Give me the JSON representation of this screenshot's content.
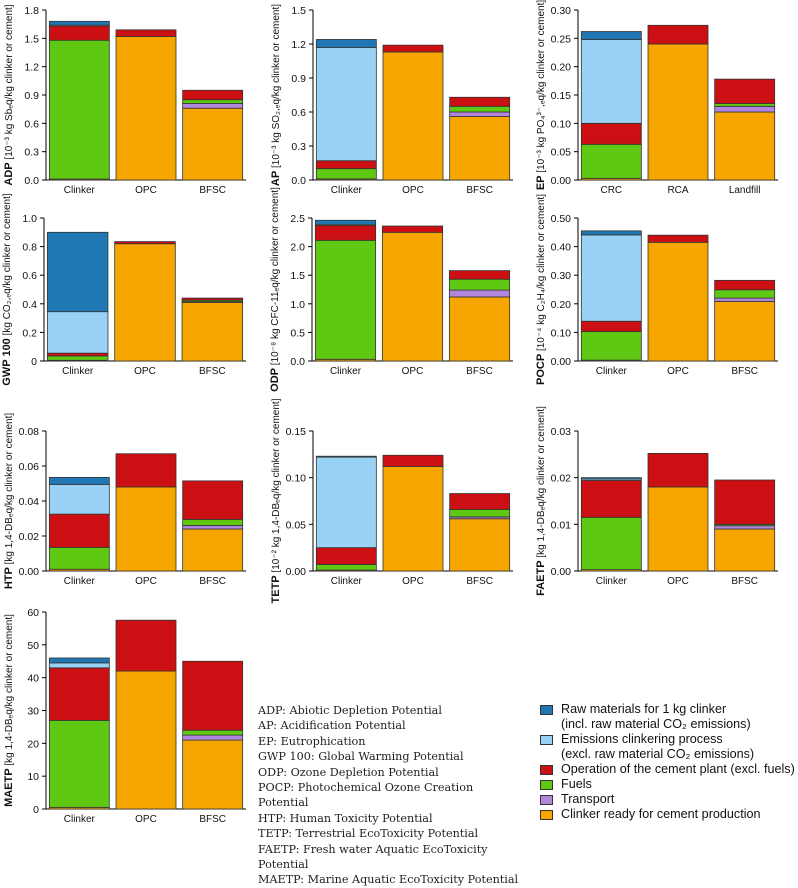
{
  "colors": {
    "raw": "#1f78b4",
    "emis": "#99d2f5",
    "oper": "#cc0f12",
    "fuels": "#5ec813",
    "transport": "#b087dc",
    "clinker_ready": "#f7a600"
  },
  "legend": [
    {
      "key": "raw",
      "line1": "Raw materials for 1 kg clinker",
      "line2": "(incl. raw material CO₂ emissions)"
    },
    {
      "key": "emis",
      "line1": "Emissions clinkering process",
      "line2": "(excl. raw material CO₂ emissions)"
    },
    {
      "key": "oper",
      "line1": "Operation of the cement plant (excl. fuels)",
      "line2": ""
    },
    {
      "key": "fuels",
      "line1": "Fuels",
      "line2": ""
    },
    {
      "key": "transport",
      "line1": "Transport",
      "line2": ""
    },
    {
      "key": "clinker_ready",
      "line1": "Clinker ready for cement production",
      "line2": ""
    }
  ],
  "abbreviations": [
    "ADP: Abiotic Depletion Potential",
    "AP: Acidification Potential",
    "EP: Eutrophication",
    "GWP 100: Global Warming Potential",
    "ODP: Ozone Depletion Potential",
    "POCP: Photochemical Ozone Creation",
    "Potential",
    "HTP: Human Toxicity Potential",
    "TETP: Terrestrial EcoToxicity Potential",
    "FAETP: Fresh water Aquatic EcoToxicity",
    "Potential",
    "MAETP: Marine Aquatic EcoToxicity Potential"
  ],
  "chart_data": [
    {
      "type": "bar",
      "stacked": true,
      "name": "ADP",
      "ylabel_bold": "ADP",
      "ylabel_rest": " [10⁻³ kg Sbₑq/kg clinker or cement]",
      "ylim": [
        0,
        1.8
      ],
      "yticks": [
        "0.0",
        "0.3",
        "0.6",
        "0.9",
        "1.2",
        "1.5",
        "1.8"
      ],
      "tick_values": [
        0,
        0.3,
        0.6,
        0.9,
        1.2,
        1.5,
        1.8
      ],
      "categories": [
        "Clinker",
        "OPC",
        "BFSC"
      ],
      "series": [
        {
          "key": "clinker_ready",
          "values": [
            0.01,
            1.52,
            0.76
          ]
        },
        {
          "key": "transport",
          "values": [
            0,
            0,
            0.05
          ]
        },
        {
          "key": "fuels",
          "values": [
            1.47,
            0,
            0.04
          ]
        },
        {
          "key": "oper",
          "values": [
            0.15,
            0.07,
            0.1
          ]
        },
        {
          "key": "emis",
          "values": [
            0.01,
            0,
            0
          ]
        },
        {
          "key": "raw",
          "values": [
            0.04,
            0,
            0
          ]
        }
      ]
    },
    {
      "type": "bar",
      "stacked": true,
      "name": "AP",
      "ylabel_bold": "AP",
      "ylabel_rest": " [10⁻³ kg SO₂,ₑq/kg clinker or cement]",
      "ylim": [
        0,
        1.5
      ],
      "yticks": [
        "0.0",
        "0.3",
        "0.6",
        "0.9",
        "1.2",
        "1.5"
      ],
      "tick_values": [
        0,
        0.3,
        0.6,
        0.9,
        1.2,
        1.5
      ],
      "categories": [
        "Clinker",
        "OPC",
        "BFSC"
      ],
      "series": [
        {
          "key": "clinker_ready",
          "values": [
            0.01,
            1.13,
            0.56
          ]
        },
        {
          "key": "transport",
          "values": [
            0,
            0,
            0.04
          ]
        },
        {
          "key": "fuels",
          "values": [
            0.09,
            0,
            0.05
          ]
        },
        {
          "key": "oper",
          "values": [
            0.07,
            0.06,
            0.08
          ]
        },
        {
          "key": "emis",
          "values": [
            1.0,
            0,
            0
          ]
        },
        {
          "key": "raw",
          "values": [
            0.07,
            0,
            0
          ]
        }
      ]
    },
    {
      "type": "bar",
      "stacked": true,
      "name": "EP",
      "ylabel_bold": "EP",
      "ylabel_rest": " [10⁻³ kg PO₄³⁻,ₑq/kg clinker or cement]",
      "ylim": [
        0,
        0.3
      ],
      "yticks": [
        "0.00",
        "0.05",
        "0.10",
        "0.15",
        "0.20",
        "0.25",
        "0.30"
      ],
      "tick_values": [
        0,
        0.05,
        0.1,
        0.15,
        0.2,
        0.25,
        0.3
      ],
      "categories": [
        "CRC",
        "RCA",
        "Landfill"
      ],
      "series": [
        {
          "key": "clinker_ready",
          "values": [
            0.003,
            0.24,
            0.12
          ]
        },
        {
          "key": "transport",
          "values": [
            0,
            0,
            0.01
          ]
        },
        {
          "key": "fuels",
          "values": [
            0.06,
            0,
            0.005
          ]
        },
        {
          "key": "oper",
          "values": [
            0.037,
            0.033,
            0.043
          ]
        },
        {
          "key": "emis",
          "values": [
            0.148,
            0,
            0
          ]
        },
        {
          "key": "raw",
          "values": [
            0.014,
            0,
            0
          ]
        }
      ]
    },
    {
      "type": "bar",
      "stacked": true,
      "name": "GWP 100",
      "ylabel_bold": "GWP 100",
      "ylabel_rest": " [kg CO₂,ₑq/kg clinker or cement]",
      "ylim": [
        0,
        1.0
      ],
      "yticks": [
        "0",
        "0.2",
        "0.4",
        "0.6",
        "0.8",
        "1.0"
      ],
      "tick_values": [
        0,
        0.2,
        0.4,
        0.6,
        0.8,
        1.0
      ],
      "categories": [
        "Clinker",
        "OPC",
        "BFSC"
      ],
      "series": [
        {
          "key": "clinker_ready",
          "values": [
            0.005,
            0.82,
            0.41
          ]
        },
        {
          "key": "transport",
          "values": [
            0,
            0,
            0.005
          ]
        },
        {
          "key": "fuels",
          "values": [
            0.03,
            0,
            0.01
          ]
        },
        {
          "key": "oper",
          "values": [
            0.02,
            0.015,
            0.015
          ]
        },
        {
          "key": "emis",
          "values": [
            0.29,
            0,
            0
          ]
        },
        {
          "key": "raw",
          "values": [
            0.555,
            0,
            0
          ]
        }
      ]
    },
    {
      "type": "bar",
      "stacked": true,
      "name": "ODP",
      "ylabel_bold": "ODP",
      "ylabel_rest": " [10⁻⁸ kg CFC-11ₑq/kg clinker or cement]",
      "ylim": [
        0,
        2.5
      ],
      "yticks": [
        "0.0",
        "0.5",
        "1.0",
        "1.5",
        "2.0",
        "2.5"
      ],
      "tick_values": [
        0,
        0.5,
        1.0,
        1.5,
        2.0,
        2.5
      ],
      "categories": [
        "Clinker",
        "OPC",
        "BFSC"
      ],
      "series": [
        {
          "key": "clinker_ready",
          "values": [
            0.03,
            2.25,
            1.12
          ]
        },
        {
          "key": "transport",
          "values": [
            0,
            0,
            0.12
          ]
        },
        {
          "key": "fuels",
          "values": [
            2.08,
            0,
            0.19
          ]
        },
        {
          "key": "oper",
          "values": [
            0.26,
            0.11,
            0.15
          ]
        },
        {
          "key": "emis",
          "values": [
            0.02,
            0,
            0
          ]
        },
        {
          "key": "raw",
          "values": [
            0.07,
            0,
            0
          ]
        }
      ]
    },
    {
      "type": "bar",
      "stacked": true,
      "name": "POCP",
      "ylabel_bold": "POCP",
      "ylabel_rest": " [10⁻⁴ kg C₂H₄/kg clinker or cement]",
      "ylim": [
        0,
        0.5
      ],
      "yticks": [
        "0.00",
        "0.10",
        "0.20",
        "0.30",
        "0.40",
        "0.50"
      ],
      "tick_values": [
        0,
        0.1,
        0.2,
        0.3,
        0.4,
        0.5
      ],
      "categories": [
        "Clinker",
        "OPC",
        "BFSC"
      ],
      "series": [
        {
          "key": "clinker_ready",
          "values": [
            0.003,
            0.415,
            0.208
          ]
        },
        {
          "key": "transport",
          "values": [
            0,
            0,
            0.012
          ]
        },
        {
          "key": "fuels",
          "values": [
            0.1,
            0,
            0.029
          ]
        },
        {
          "key": "oper",
          "values": [
            0.036,
            0.025,
            0.033
          ]
        },
        {
          "key": "emis",
          "values": [
            0.302,
            0,
            0
          ]
        },
        {
          "key": "raw",
          "values": [
            0.014,
            0,
            0
          ]
        }
      ]
    },
    {
      "type": "bar",
      "stacked": true,
      "name": "HTP",
      "ylabel_bold": "HTP",
      "ylabel_rest": " [kg 1,4-DBₑq/kg clinker or cement]",
      "ylim": [
        0,
        0.08
      ],
      "yticks": [
        "0.00",
        "0.02",
        "0.04",
        "0.06",
        "0.08"
      ],
      "tick_values": [
        0,
        0.02,
        0.04,
        0.06,
        0.08
      ],
      "categories": [
        "Clinker",
        "OPC",
        "BFSC"
      ],
      "series": [
        {
          "key": "clinker_ready",
          "values": [
            0.001,
            0.048,
            0.024
          ]
        },
        {
          "key": "transport",
          "values": [
            0,
            0,
            0.002
          ]
        },
        {
          "key": "fuels",
          "values": [
            0.0125,
            0,
            0.0035
          ]
        },
        {
          "key": "oper",
          "values": [
            0.019,
            0.019,
            0.022
          ]
        },
        {
          "key": "emis",
          "values": [
            0.017,
            0,
            0
          ]
        },
        {
          "key": "raw",
          "values": [
            0.004,
            0,
            0
          ]
        }
      ]
    },
    {
      "type": "bar",
      "stacked": true,
      "name": "TETP",
      "ylabel_bold": "TETP",
      "ylabel_rest": " [10⁻² kg 1,4-DBₑq/kg clinker or cement]",
      "ylim": [
        0,
        0.15
      ],
      "yticks": [
        "0.00",
        "0.05",
        "0.10",
        "0.15"
      ],
      "tick_values": [
        0,
        0.05,
        0.1,
        0.15
      ],
      "categories": [
        "Clinker",
        "OPC",
        "BFSC"
      ],
      "series": [
        {
          "key": "clinker_ready",
          "values": [
            0.001,
            0.112,
            0.056
          ]
        },
        {
          "key": "transport",
          "values": [
            0,
            0,
            0.002
          ]
        },
        {
          "key": "fuels",
          "values": [
            0.006,
            0,
            0.008
          ]
        },
        {
          "key": "oper",
          "values": [
            0.018,
            0.012,
            0.017
          ]
        },
        {
          "key": "emis",
          "values": [
            0.097,
            0,
            0
          ]
        },
        {
          "key": "raw",
          "values": [
            0.001,
            0,
            0
          ]
        }
      ]
    },
    {
      "type": "bar",
      "stacked": true,
      "name": "FAETP",
      "ylabel_bold": "FAETP",
      "ylabel_rest": " [kg 1,4-DBₑq/kg clinker or cement]",
      "ylim": [
        0,
        0.03
      ],
      "yticks": [
        "0.00",
        "0.01",
        "0.02",
        "0.03"
      ],
      "tick_values": [
        0,
        0.01,
        0.02,
        0.03
      ],
      "categories": [
        "Clinker",
        "OPC",
        "BFSC"
      ],
      "series": [
        {
          "key": "clinker_ready",
          "values": [
            0.0003,
            0.018,
            0.009
          ]
        },
        {
          "key": "transport",
          "values": [
            0,
            0,
            0.0007
          ]
        },
        {
          "key": "fuels",
          "values": [
            0.0112,
            0,
            0.0003
          ]
        },
        {
          "key": "oper",
          "values": [
            0.0079,
            0.0072,
            0.0095
          ]
        },
        {
          "key": "emis",
          "values": [
            0.0003,
            0,
            0
          ]
        },
        {
          "key": "raw",
          "values": [
            0.0003,
            0,
            0
          ]
        }
      ]
    },
    {
      "type": "bar",
      "stacked": true,
      "name": "MAETP",
      "ylabel_bold": "MAETP",
      "ylabel_rest": " [kg 1,4-DBₑq/kg clinker or cement]",
      "ylim": [
        0,
        60
      ],
      "yticks": [
        "0",
        "10",
        "20",
        "30",
        "40",
        "50",
        "60"
      ],
      "tick_values": [
        0,
        10,
        20,
        30,
        40,
        50,
        60
      ],
      "categories": [
        "Clinker",
        "OPC",
        "BFSC"
      ],
      "series": [
        {
          "key": "clinker_ready",
          "values": [
            0.5,
            42,
            21
          ]
        },
        {
          "key": "transport",
          "values": [
            0,
            0,
            1.5
          ]
        },
        {
          "key": "fuels",
          "values": [
            26.5,
            0,
            1.5
          ]
        },
        {
          "key": "oper",
          "values": [
            16,
            15.5,
            21
          ]
        },
        {
          "key": "emis",
          "values": [
            1.5,
            0,
            0
          ]
        },
        {
          "key": "raw",
          "values": [
            1.5,
            0,
            0
          ]
        }
      ]
    }
  ]
}
